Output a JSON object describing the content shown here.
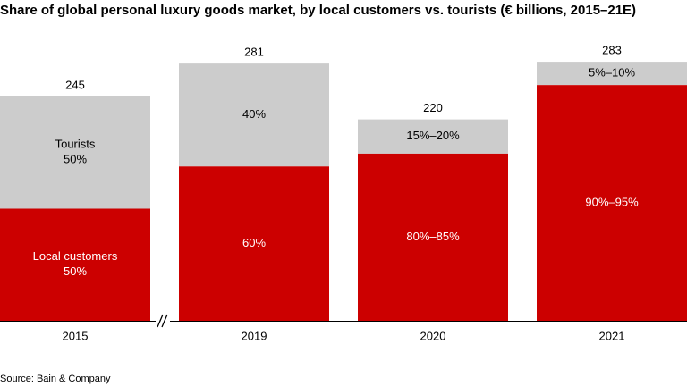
{
  "chart_data": {
    "type": "bar",
    "stacked": true,
    "title": "Share of global personal luxury goods market, by local customers vs. tourists (€ billions, 2015–21E)",
    "categories": [
      "2015",
      "2019",
      "2020",
      "2021"
    ],
    "totals": [
      245,
      281,
      220,
      283
    ],
    "local_share_estimate": [
      0.5,
      0.6,
      0.83,
      0.91
    ],
    "series": [
      {
        "name": "Local customers",
        "color": "#cc0000",
        "labels": [
          "Local customers\n50%",
          "60%",
          "80%–85%",
          "90%–95%"
        ]
      },
      {
        "name": "Tourists",
        "color": "#cccccc",
        "labels": [
          "Tourists\n50%",
          "40%",
          "15%–20%",
          "5%–10%"
        ]
      }
    ],
    "axis_break_between": [
      "2015",
      "2019"
    ],
    "ylim": [
      0,
      300
    ],
    "grid": false,
    "legend": "none"
  },
  "source": "Source: Bain & Company"
}
